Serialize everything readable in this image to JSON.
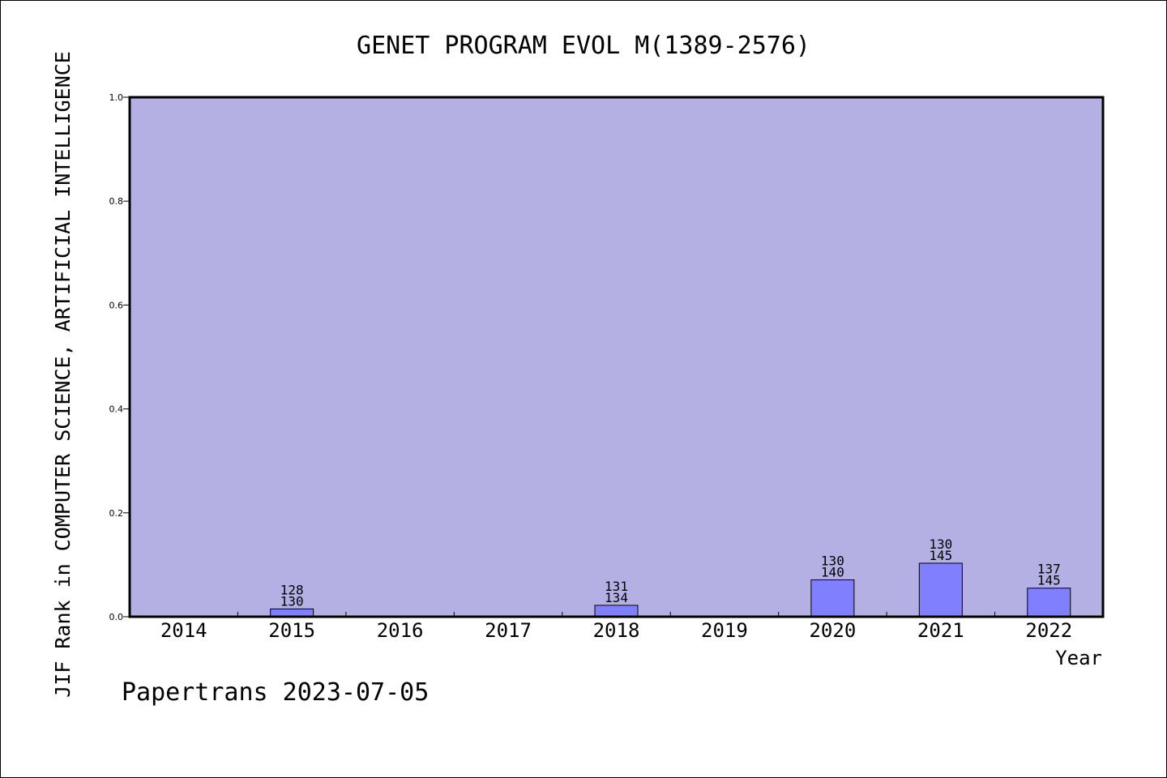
{
  "chart_data": {
    "type": "bar",
    "title": "GENET PROGRAM EVOL M(1389-2576)",
    "xlabel": "Year",
    "ylabel": "JIF Rank in COMPUTER SCIENCE, ARTIFICIAL INTELLIGENCE",
    "categories": [
      "2014",
      "2015",
      "2016",
      "2017",
      "2018",
      "2019",
      "2020",
      "2021",
      "2022"
    ],
    "values": [
      null,
      0.015,
      null,
      null,
      0.022,
      null,
      0.071,
      0.103,
      0.055
    ],
    "bar_labels": [
      null,
      [
        "128",
        "130"
      ],
      null,
      null,
      [
        "131",
        "134"
      ],
      null,
      [
        "130",
        "140"
      ],
      [
        "130",
        "145"
      ],
      [
        "137",
        "145"
      ]
    ],
    "ylim": [
      0,
      1.0
    ],
    "yticks": [
      "0.0",
      "0.2",
      "0.4",
      "0.6",
      "0.8",
      "1.0"
    ],
    "grid": false,
    "colors": {
      "plot_background": "#b5b0e3",
      "bar_fill": "#8080ff",
      "bar_stroke": "#000000"
    }
  },
  "footer": {
    "credit": "Papertrans 2023-07-05"
  }
}
